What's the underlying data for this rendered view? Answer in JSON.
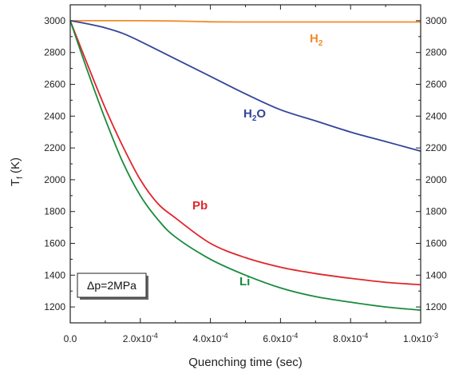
{
  "chart_data": {
    "type": "line",
    "xlabel": "Quenching time (sec)",
    "ylabel_main": "T",
    "ylabel_sub": "f",
    "ylabel_unit": " (K)",
    "xlim": [
      0,
      0.001
    ],
    "ylim": [
      1100,
      3100
    ],
    "x_ticks": [
      {
        "value": 0,
        "mant": "0.0",
        "exp": ""
      },
      {
        "value": 0.0002,
        "mant": "2.0x10",
        "exp": "-4"
      },
      {
        "value": 0.0004,
        "mant": "4.0x10",
        "exp": "-4"
      },
      {
        "value": 0.0006,
        "mant": "6.0x10",
        "exp": "-4"
      },
      {
        "value": 0.0008,
        "mant": "8.0x10",
        "exp": "-4"
      },
      {
        "value": 0.001,
        "mant": "1.0x10",
        "exp": "-3"
      }
    ],
    "y_ticks": [
      1200,
      1400,
      1600,
      1800,
      2000,
      2200,
      2400,
      2600,
      2800,
      3000
    ],
    "annotation": "Δp=2MPa",
    "series": [
      {
        "name_main": "H",
        "name_sub": "2",
        "name_tail": "",
        "color": "#f08c28",
        "x": [
          0,
          0.0001,
          0.0002,
          0.0003,
          0.0004,
          0.0005,
          0.0006,
          0.0007,
          0.0008,
          0.0009,
          0.001
        ],
        "y": [
          3000,
          3000,
          3000,
          2998,
          2993,
          2992,
          2992,
          2992,
          2992,
          2992,
          2992
        ]
      },
      {
        "name_main": "H",
        "name_sub": "2",
        "name_tail": "O",
        "color": "#33449a",
        "x": [
          0,
          5e-05,
          0.0001,
          0.00015,
          0.0002,
          0.0003,
          0.0004,
          0.0005,
          0.0006,
          0.0007,
          0.0008,
          0.0009,
          0.001
        ],
        "y": [
          3000,
          2980,
          2955,
          2920,
          2870,
          2760,
          2650,
          2540,
          2440,
          2370,
          2300,
          2240,
          2180
        ]
      },
      {
        "name_main": "Pb",
        "name_sub": "",
        "name_tail": "",
        "color": "#e0262c",
        "x": [
          0,
          5e-05,
          0.0001,
          0.00015,
          0.0002,
          0.00025,
          0.0003,
          0.0004,
          0.0005,
          0.0006,
          0.0007,
          0.0008,
          0.0009,
          0.001
        ],
        "y": [
          3000,
          2720,
          2450,
          2210,
          2000,
          1850,
          1760,
          1600,
          1510,
          1450,
          1410,
          1380,
          1355,
          1340
        ]
      },
      {
        "name_main": "Li",
        "name_sub": "",
        "name_tail": "",
        "color": "#1a8a3c",
        "x": [
          0,
          5e-05,
          0.0001,
          0.00015,
          0.0002,
          0.00025,
          0.0003,
          0.0004,
          0.0005,
          0.0006,
          0.0007,
          0.0008,
          0.0009,
          0.001
        ],
        "y": [
          3000,
          2680,
          2380,
          2110,
          1900,
          1750,
          1640,
          1500,
          1400,
          1320,
          1265,
          1230,
          1200,
          1180
        ]
      }
    ]
  }
}
